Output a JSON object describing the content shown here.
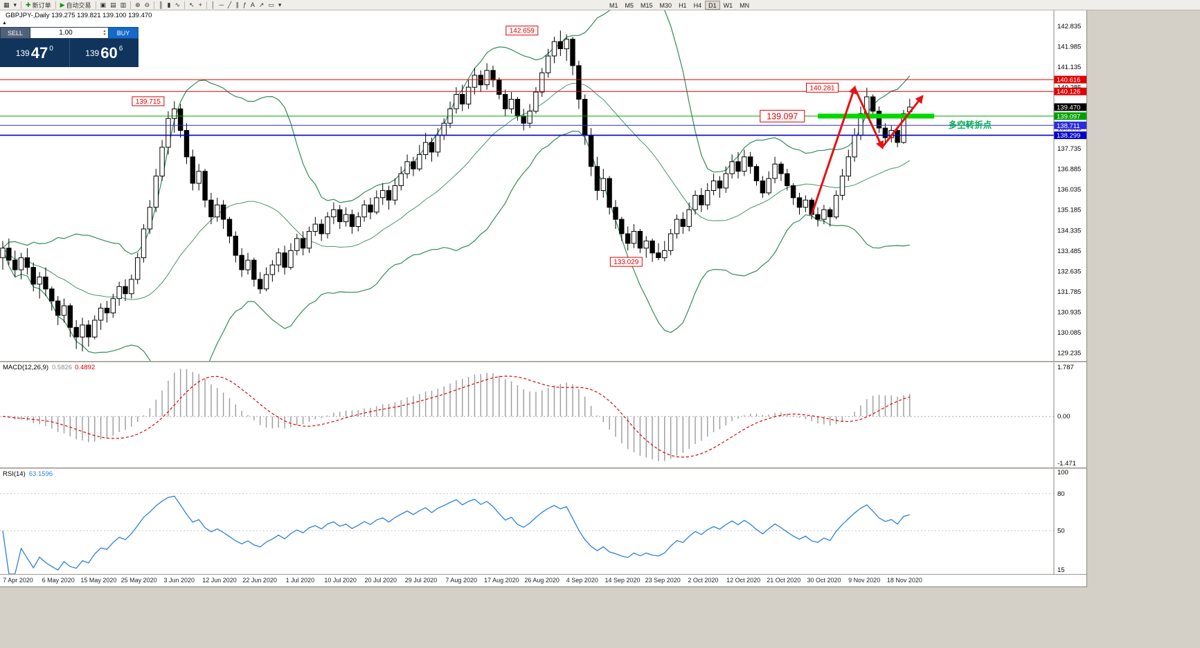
{
  "toolbar": {
    "items": [
      {
        "name": "new-chart",
        "icon": "▦"
      },
      {
        "name": "chart-dropdown",
        "icon": "▾"
      },
      {
        "sep": true
      },
      {
        "name": "new-order",
        "icon": "✚",
        "icon_color": "#1f8a1f",
        "label": "新订单"
      },
      {
        "sep": true
      },
      {
        "name": "autotrading",
        "icon": "▶",
        "icon_color": "#0c9a0c",
        "label": "自动交易"
      },
      {
        "sep": true
      },
      {
        "name": "cascade-windows",
        "icon": "▣"
      },
      {
        "name": "tile-horizontally",
        "icon": "▤"
      },
      {
        "name": "tile-vertically",
        "icon": "▥"
      },
      {
        "sep": true
      },
      {
        "name": "zoom-in",
        "icon": "⊕"
      },
      {
        "name": "zoom-out",
        "icon": "⊖"
      },
      {
        "sep": true
      },
      {
        "name": "bar-chart-mode",
        "icon": "║"
      },
      {
        "name": "candlestick-mode",
        "icon": "▮"
      },
      {
        "name": "line-chart-mode",
        "icon": "∿"
      },
      {
        "sep": true
      },
      {
        "name": "cursor-tool",
        "icon": "↖"
      },
      {
        "name": "crosshair-tool",
        "icon": "+"
      },
      {
        "sep": true
      },
      {
        "name": "vertical-line-tool",
        "icon": "│"
      },
      {
        "name": "horizontal-line-tool",
        "icon": "─"
      },
      {
        "name": "trendline-tool",
        "icon": "╱"
      },
      {
        "name": "channel-tool",
        "icon": "∥"
      },
      {
        "name": "fibonacci-tool",
        "icon": "ƒ"
      },
      {
        "name": "text-tool",
        "icon": "A"
      },
      {
        "name": "arrow-tool",
        "icon": "↗"
      },
      {
        "name": "shapes-dropdown",
        "icon": "▭"
      },
      {
        "name": "objects-dropdown",
        "icon": "▾"
      }
    ],
    "timeframes": [
      {
        "label": "M1"
      },
      {
        "label": "M5"
      },
      {
        "label": "M15"
      },
      {
        "label": "M30"
      },
      {
        "label": "H1"
      },
      {
        "label": "H4"
      },
      {
        "label": "D1",
        "active": true
      },
      {
        "label": "W1"
      },
      {
        "label": "MN"
      }
    ]
  },
  "one_click": {
    "collapse_icon": "▲",
    "sell_label": "SELL",
    "buy_label": "BUY",
    "volume": "1.00",
    "bid": {
      "base": "139",
      "pips": "47",
      "point": "0"
    },
    "ask": {
      "base": "139",
      "pips": "60",
      "point": "6"
    }
  },
  "chart": {
    "symbol_line": "GBPJPY-,Daily  139.275 139.821 139.100 139.470"
  },
  "chart_data": {
    "type": "candlestick",
    "symbol": "GBPJPY-",
    "timeframe": "Daily",
    "open": "139.275",
    "high": "139.821",
    "low": "139.100",
    "close": "139.470",
    "y_axis": {
      "min": 128.9,
      "max": 143.5,
      "ticks": [
        142.835,
        141.985,
        141.135,
        140.285,
        139.435,
        138.585,
        137.735,
        136.885,
        136.035,
        135.185,
        134.335,
        133.485,
        132.635,
        131.785,
        130.935,
        130.085,
        129.235
      ]
    },
    "x_labels": [
      "7 Apr 2020",
      "6 May 2020",
      "15 May 2020",
      "25 May 2020",
      "3 Jun 2020",
      "12 Jun 2020",
      "22 Jun 2020",
      "1 Jul 2020",
      "10 Jul 2020",
      "20 Jul 2020",
      "29 Jul 2020",
      "7 Aug 2020",
      "17 Aug 2020",
      "26 Aug 2020",
      "4 Sep 2020",
      "14 Sep 2020",
      "23 Sep 2020",
      "2 Oct 2020",
      "12 Oct 2020",
      "21 Oct 2020",
      "30 Oct 2020",
      "9 Nov 2020",
      "18 Nov 2020"
    ],
    "bollinger": {
      "period": 20,
      "deviation": 2,
      "color": "#2E8B57"
    },
    "candles": [
      [
        133.2,
        133.9,
        132.7,
        133.6
      ],
      [
        133.6,
        134.0,
        132.9,
        133.1
      ],
      [
        133.1,
        133.5,
        132.4,
        132.7
      ],
      [
        132.7,
        133.4,
        132.3,
        133.2
      ],
      [
        133.2,
        133.6,
        132.5,
        132.8
      ],
      [
        132.8,
        133.0,
        131.8,
        132.1
      ],
      [
        132.1,
        132.6,
        131.5,
        132.4
      ],
      [
        132.4,
        132.8,
        131.6,
        131.9
      ],
      [
        131.9,
        132.0,
        131.0,
        131.4
      ],
      [
        131.4,
        131.6,
        130.4,
        130.8
      ],
      [
        130.8,
        131.5,
        130.5,
        131.2
      ],
      [
        131.2,
        131.3,
        129.9,
        130.3
      ],
      [
        130.3,
        130.6,
        129.4,
        129.9
      ],
      [
        129.9,
        130.7,
        129.3,
        130.4
      ],
      [
        130.4,
        130.6,
        129.5,
        129.9
      ],
      [
        129.9,
        130.8,
        129.8,
        130.6
      ],
      [
        130.6,
        131.3,
        130.2,
        131.1
      ],
      [
        131.1,
        131.4,
        130.5,
        130.9
      ],
      [
        130.9,
        131.7,
        130.7,
        131.5
      ],
      [
        131.5,
        132.2,
        131.2,
        132.0
      ],
      [
        132.0,
        132.3,
        131.4,
        131.7
      ],
      [
        131.7,
        132.5,
        131.5,
        132.3
      ],
      [
        132.3,
        133.4,
        132.1,
        133.2
      ],
      [
        133.2,
        134.6,
        133.0,
        134.4
      ],
      [
        134.4,
        135.6,
        134.2,
        135.3
      ],
      [
        135.3,
        136.9,
        135.1,
        136.6
      ],
      [
        136.6,
        138.1,
        136.4,
        137.8
      ],
      [
        137.8,
        139.3,
        137.5,
        139.0
      ],
      [
        139.0,
        139.715,
        138.4,
        139.4
      ],
      [
        139.4,
        139.6,
        138.2,
        138.5
      ],
      [
        138.5,
        138.8,
        137.1,
        137.4
      ],
      [
        137.4,
        137.7,
        136.0,
        136.3
      ],
      [
        136.3,
        137.1,
        136.0,
        136.8
      ],
      [
        136.8,
        136.9,
        135.3,
        135.6
      ],
      [
        135.6,
        135.9,
        134.6,
        134.9
      ],
      [
        134.9,
        135.7,
        134.7,
        135.4
      ],
      [
        135.4,
        135.6,
        134.4,
        134.8
      ],
      [
        134.8,
        134.9,
        133.8,
        134.1
      ],
      [
        134.1,
        134.3,
        133.0,
        133.3
      ],
      [
        133.3,
        133.6,
        132.4,
        132.7
      ],
      [
        132.7,
        133.4,
        132.5,
        133.1
      ],
      [
        133.1,
        133.2,
        132.0,
        132.3
      ],
      [
        132.3,
        132.6,
        131.7,
        131.9
      ],
      [
        131.9,
        132.8,
        131.8,
        132.5
      ],
      [
        132.5,
        133.1,
        132.2,
        132.9
      ],
      [
        132.9,
        133.6,
        132.6,
        133.4
      ],
      [
        133.4,
        133.7,
        132.5,
        132.8
      ],
      [
        132.8,
        133.8,
        132.7,
        133.5
      ],
      [
        133.5,
        134.2,
        133.3,
        134.0
      ],
      [
        134.0,
        134.3,
        133.3,
        133.6
      ],
      [
        133.6,
        134.5,
        133.4,
        134.3
      ],
      [
        134.3,
        134.9,
        134.1,
        134.6
      ],
      [
        134.6,
        134.8,
        133.9,
        134.2
      ],
      [
        134.2,
        135.1,
        134.0,
        134.9
      ],
      [
        134.9,
        135.5,
        134.6,
        135.2
      ],
      [
        135.2,
        135.4,
        134.4,
        134.7
      ],
      [
        134.7,
        135.3,
        134.5,
        135.0
      ],
      [
        135.0,
        135.2,
        134.2,
        134.5
      ],
      [
        134.5,
        135.1,
        134.3,
        134.9
      ],
      [
        134.9,
        135.6,
        134.7,
        135.4
      ],
      [
        135.4,
        135.7,
        134.8,
        135.1
      ],
      [
        135.1,
        136.0,
        135.0,
        135.7
      ],
      [
        135.7,
        136.3,
        135.4,
        136.0
      ],
      [
        136.0,
        136.2,
        135.2,
        135.6
      ],
      [
        135.6,
        136.5,
        135.4,
        136.2
      ],
      [
        136.2,
        137.0,
        136.0,
        136.7
      ],
      [
        136.7,
        137.5,
        136.5,
        137.2
      ],
      [
        137.2,
        137.4,
        136.6,
        136.9
      ],
      [
        136.9,
        137.9,
        136.8,
        137.5
      ],
      [
        137.5,
        138.4,
        137.3,
        138.0
      ],
      [
        138.0,
        138.2,
        137.2,
        137.6
      ],
      [
        137.6,
        138.6,
        137.4,
        138.3
      ],
      [
        138.3,
        139.0,
        138.1,
        138.8
      ],
      [
        138.8,
        139.7,
        138.6,
        139.4
      ],
      [
        139.4,
        140.3,
        139.2,
        140.0
      ],
      [
        140.0,
        140.4,
        139.3,
        139.6
      ],
      [
        139.6,
        140.6,
        139.4,
        140.3
      ],
      [
        140.3,
        141.1,
        140.0,
        140.8
      ],
      [
        140.8,
        141.0,
        140.1,
        140.4
      ],
      [
        140.4,
        141.3,
        140.2,
        141.0
      ],
      [
        141.0,
        141.2,
        140.3,
        140.6
      ],
      [
        140.6,
        140.7,
        139.8,
        140.0
      ],
      [
        140.0,
        140.2,
        139.1,
        139.4
      ],
      [
        139.4,
        140.1,
        139.2,
        139.8
      ],
      [
        139.8,
        139.9,
        138.9,
        139.1
      ],
      [
        139.1,
        139.4,
        138.5,
        138.8
      ],
      [
        138.8,
        139.6,
        138.6,
        139.3
      ],
      [
        139.3,
        140.3,
        139.2,
        140.1
      ],
      [
        140.1,
        141.1,
        139.9,
        140.9
      ],
      [
        140.9,
        141.9,
        140.7,
        141.6
      ],
      [
        141.6,
        142.4,
        141.3,
        142.2
      ],
      [
        142.2,
        142.659,
        141.6,
        141.9
      ],
      [
        141.9,
        142.5,
        141.4,
        142.3
      ],
      [
        142.3,
        142.4,
        140.8,
        141.2
      ],
      [
        141.2,
        141.4,
        139.4,
        139.8
      ],
      [
        139.8,
        140.0,
        137.9,
        138.3
      ],
      [
        138.3,
        138.6,
        136.6,
        137.0
      ],
      [
        137.0,
        137.4,
        135.6,
        136.0
      ],
      [
        136.0,
        136.9,
        135.7,
        136.5
      ],
      [
        136.5,
        136.6,
        135.0,
        135.3
      ],
      [
        135.3,
        135.6,
        134.4,
        134.8
      ],
      [
        134.8,
        134.9,
        133.9,
        134.2
      ],
      [
        134.2,
        134.5,
        133.5,
        133.8
      ],
      [
        133.8,
        134.6,
        133.6,
        134.3
      ],
      [
        134.3,
        134.4,
        133.4,
        133.6
      ],
      [
        133.6,
        134.1,
        133.2,
        133.9
      ],
      [
        133.9,
        134.0,
        133.029,
        133.4
      ],
      [
        133.4,
        133.8,
        133.1,
        133.2
      ],
      [
        133.2,
        133.9,
        133.05,
        133.5
      ],
      [
        133.5,
        134.4,
        133.3,
        134.2
      ],
      [
        134.2,
        135.0,
        134.0,
        134.8
      ],
      [
        134.8,
        135.1,
        134.2,
        134.5
      ],
      [
        134.5,
        135.5,
        134.3,
        135.2
      ],
      [
        135.2,
        136.0,
        135.0,
        135.8
      ],
      [
        135.8,
        136.1,
        135.1,
        135.4
      ],
      [
        135.4,
        136.3,
        135.2,
        136.0
      ],
      [
        136.0,
        136.7,
        135.8,
        136.4
      ],
      [
        136.4,
        136.6,
        135.7,
        136.1
      ],
      [
        136.1,
        137.0,
        135.9,
        136.7
      ],
      [
        136.7,
        137.5,
        136.5,
        137.2
      ],
      [
        137.2,
        137.6,
        136.5,
        136.8
      ],
      [
        136.8,
        137.7,
        136.6,
        137.4
      ],
      [
        137.4,
        137.6,
        136.7,
        137.0
      ],
      [
        137.0,
        137.1,
        136.2,
        136.4
      ],
      [
        136.4,
        136.6,
        135.7,
        135.9
      ],
      [
        135.9,
        136.8,
        135.8,
        136.5
      ],
      [
        136.5,
        137.4,
        136.3,
        137.1
      ],
      [
        137.1,
        137.2,
        136.4,
        136.7
      ],
      [
        136.7,
        136.9,
        136.0,
        136.2
      ],
      [
        136.2,
        136.3,
        135.4,
        135.7
      ],
      [
        135.7,
        135.9,
        135.0,
        135.3
      ],
      [
        135.3,
        135.8,
        135.1,
        135.6
      ],
      [
        135.6,
        135.7,
        134.8,
        135.0
      ],
      [
        135.0,
        135.3,
        134.5,
        134.8
      ],
      [
        134.8,
        135.4,
        134.6,
        135.2
      ],
      [
        135.2,
        135.3,
        134.5,
        134.9
      ],
      [
        134.9,
        136.0,
        134.8,
        135.8
      ],
      [
        135.8,
        136.9,
        135.6,
        136.6
      ],
      [
        136.6,
        137.7,
        136.4,
        137.4
      ],
      [
        137.4,
        138.6,
        137.2,
        138.3
      ],
      [
        138.3,
        139.5,
        138.1,
        139.2
      ],
      [
        139.2,
        140.281,
        139.0,
        139.9
      ],
      [
        139.9,
        140.0,
        139.0,
        139.3
      ],
      [
        139.3,
        139.5,
        138.4,
        138.6
      ],
      [
        138.6,
        138.8,
        137.9,
        138.2
      ],
      [
        138.2,
        138.7,
        138.0,
        138.5
      ],
      [
        138.5,
        138.6,
        137.8,
        138.0
      ],
      [
        138.0,
        139.35,
        137.95,
        139.2
      ],
      [
        139.275,
        139.821,
        139.1,
        139.47
      ]
    ],
    "overlays": {
      "hlines": [
        {
          "price": 140.616,
          "color": "#e00000",
          "width": 1
        },
        {
          "price": 140.126,
          "color": "#e00000",
          "width": 1
        },
        {
          "price": 139.097,
          "color": "#00a000",
          "width": 1
        },
        {
          "price": 138.711,
          "color": "#2a2ae0",
          "width": 1
        },
        {
          "price": 138.299,
          "color": "#0000cc",
          "width": 1.6
        }
      ],
      "thick_segment": {
        "price": 139.097,
        "bar_start": 133,
        "bar_end": 152,
        "color": "#00d800",
        "width": 7
      },
      "price_labels": [
        {
          "text": "142.659",
          "bar": 88,
          "price": 142.659
        },
        {
          "text": "139.715",
          "bar": 27,
          "price": 139.715
        },
        {
          "text": "140.281",
          "bar": 137,
          "price": 140.281
        },
        {
          "text": "133.029",
          "bar": 105,
          "price": 133.029
        },
        {
          "text": "139.097",
          "bar": 131.5,
          "price": 139.097,
          "big": true
        }
      ],
      "axis_badges": [
        {
          "text": "140.616",
          "color": "#e00000"
        },
        {
          "text": "140.126",
          "color": "#e00000"
        },
        {
          "text": "139.470",
          "color": "#000000"
        },
        {
          "text": "139.097",
          "color": "#00a000"
        },
        {
          "text": "138.711",
          "color": "#2a2ae0"
        },
        {
          "text": "138.299",
          "color": "#0000cc"
        }
      ],
      "zigzag": {
        "color": "#e81010",
        "width": 3,
        "points": [
          [
            132,
            135.0
          ],
          [
            139,
            140.28
          ],
          [
            143.5,
            137.8
          ],
          [
            150,
            139.9
          ]
        ]
      },
      "note": {
        "text": "多空转折点",
        "color": "#00b050",
        "bar": 154.3,
        "price": 138.72
      }
    },
    "macd": {
      "label": "MACD(12,26,9)",
      "value_main": "0.5826",
      "value_signal": "0.4892",
      "axis_labels": [
        "1.787",
        "0.00",
        "-1.471"
      ],
      "bar_color": "#9a9a9a",
      "signal_color": "#e00000"
    },
    "rsi": {
      "label": "RSI(14)",
      "value": "63.1596",
      "color": "#2a7fde",
      "axis_labels": [
        "100",
        "80",
        "50",
        "15"
      ],
      "range": [
        15,
        100
      ],
      "levels": [
        80,
        50
      ]
    }
  }
}
